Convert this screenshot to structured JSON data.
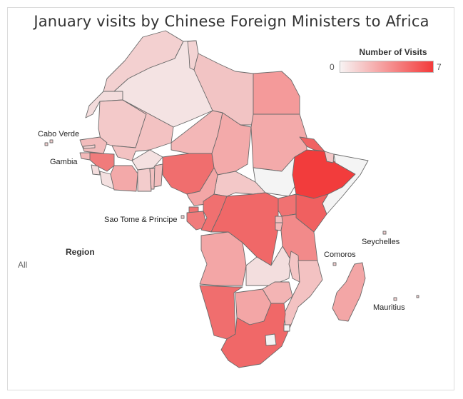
{
  "title": "January visits by Chinese Foreign Ministers to Africa",
  "legend": {
    "title": "Number of Visits",
    "min": "0",
    "max": "7",
    "color_low": "#f7f3f3",
    "color_high": "#f33a3a"
  },
  "filter": {
    "label": "Region",
    "value": "All"
  },
  "labels": {
    "cabo_verde": "Cabo Verde",
    "gambia": "Gambia",
    "sao_tome": "Sao Tome & Principe",
    "comoros": "Comoros",
    "seychelles": "Seychelles",
    "mauritius": "Mauritius"
  },
  "colors": {
    "border": "#6b6b6b",
    "none": "#f4f4f4"
  }
}
